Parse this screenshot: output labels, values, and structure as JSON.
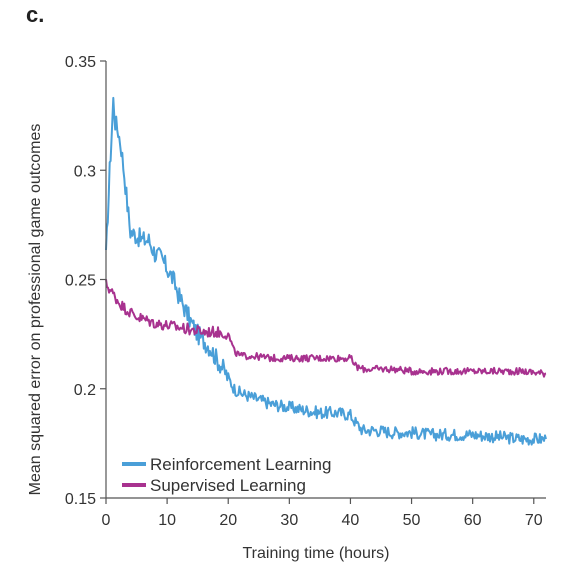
{
  "panel_label": "c.",
  "chart_data": {
    "type": "line",
    "title": "",
    "xlabel": "Training time (hours)",
    "ylabel": "Mean squared error on professional game outcomes",
    "xlim": [
      0,
      72
    ],
    "ylim": [
      0.15,
      0.35
    ],
    "xticks": [
      0,
      10,
      20,
      30,
      40,
      50,
      60,
      70
    ],
    "xtick_labels": [
      "0",
      "10",
      "20",
      "30",
      "40",
      "50",
      "60",
      "70"
    ],
    "yticks": [
      0.15,
      0.2,
      0.25,
      0.3,
      0.35
    ],
    "ytick_labels": [
      "0.15",
      "0.2",
      "0.25",
      "0.3",
      "0.35"
    ],
    "grid": false,
    "legend_position": "bottom-left",
    "series": [
      {
        "name": "Reinforcement Learning",
        "color": "#4a9fd8",
        "points": [
          [
            0,
            0.26
          ],
          [
            0.3,
            0.28
          ],
          [
            0.6,
            0.3
          ],
          [
            0.9,
            0.315
          ],
          [
            1.2,
            0.332
          ],
          [
            1.5,
            0.322
          ],
          [
            2,
            0.318
          ],
          [
            2.5,
            0.31
          ],
          [
            3,
            0.298
          ],
          [
            3.5,
            0.284
          ],
          [
            4,
            0.272
          ],
          [
            5,
            0.27
          ],
          [
            6,
            0.268
          ],
          [
            7,
            0.268
          ],
          [
            8,
            0.262
          ],
          [
            9,
            0.26
          ],
          [
            10,
            0.255
          ],
          [
            11,
            0.25
          ],
          [
            12,
            0.242
          ],
          [
            13,
            0.236
          ],
          [
            14,
            0.23
          ],
          [
            15,
            0.225
          ],
          [
            16,
            0.222
          ],
          [
            17,
            0.219
          ],
          [
            18,
            0.214
          ],
          [
            19,
            0.21
          ],
          [
            20,
            0.205
          ],
          [
            21,
            0.2
          ],
          [
            22,
            0.198
          ],
          [
            23,
            0.197
          ],
          [
            25,
            0.195
          ],
          [
            27,
            0.193
          ],
          [
            29,
            0.192
          ],
          [
            31,
            0.191
          ],
          [
            33,
            0.19
          ],
          [
            35,
            0.189
          ],
          [
            38,
            0.189
          ],
          [
            40,
            0.188
          ],
          [
            41,
            0.184
          ],
          [
            42,
            0.181
          ],
          [
            44,
            0.181
          ],
          [
            47,
            0.18
          ],
          [
            50,
            0.18
          ],
          [
            53,
            0.179
          ],
          [
            56,
            0.179
          ],
          [
            60,
            0.179
          ],
          [
            64,
            0.178
          ],
          [
            68,
            0.177
          ],
          [
            72,
            0.177
          ]
        ]
      },
      {
        "name": "Supervised Learning",
        "color": "#a8328f",
        "points": [
          [
            0,
            0.248
          ],
          [
            0.5,
            0.246
          ],
          [
            1,
            0.244
          ],
          [
            2,
            0.24
          ],
          [
            3,
            0.237
          ],
          [
            4,
            0.235
          ],
          [
            5,
            0.233
          ],
          [
            6,
            0.232
          ],
          [
            7,
            0.231
          ],
          [
            8,
            0.23
          ],
          [
            10,
            0.229
          ],
          [
            12,
            0.228
          ],
          [
            14,
            0.227
          ],
          [
            16,
            0.226
          ],
          [
            18,
            0.226
          ],
          [
            20,
            0.225
          ],
          [
            21,
            0.217
          ],
          [
            22,
            0.215
          ],
          [
            24,
            0.215
          ],
          [
            27,
            0.214
          ],
          [
            30,
            0.214
          ],
          [
            33,
            0.214
          ],
          [
            36,
            0.214
          ],
          [
            39,
            0.214
          ],
          [
            40,
            0.214
          ],
          [
            41,
            0.21
          ],
          [
            42,
            0.209
          ],
          [
            44,
            0.209
          ],
          [
            47,
            0.209
          ],
          [
            50,
            0.208
          ],
          [
            53,
            0.208
          ],
          [
            56,
            0.208
          ],
          [
            60,
            0.208
          ],
          [
            64,
            0.208
          ],
          [
            68,
            0.208
          ],
          [
            72,
            0.207
          ]
        ]
      }
    ]
  }
}
